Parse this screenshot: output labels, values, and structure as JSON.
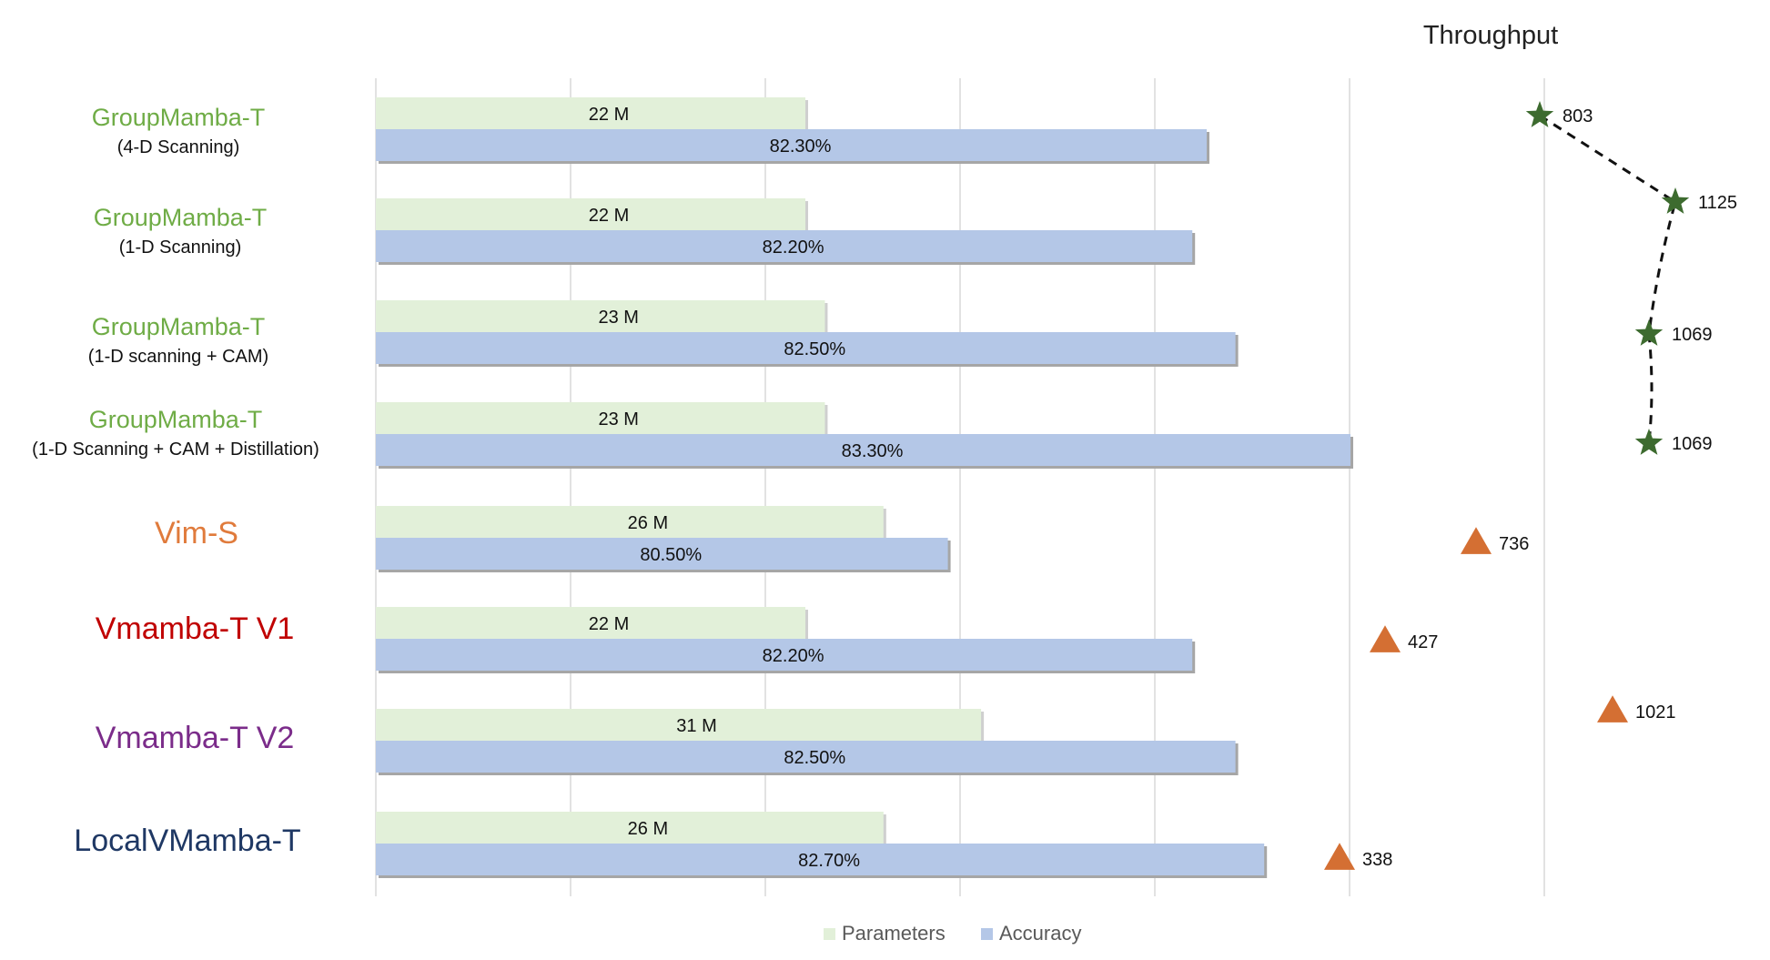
{
  "chart_data": {
    "type": "bar",
    "orientation": "horizontal",
    "categories": [
      {
        "name": "GroupMamba-T",
        "sub": "(4-D Scanning)",
        "color": "#6fac46"
      },
      {
        "name": "GroupMamba-T",
        "sub": "(1-D Scanning)",
        "color": "#6fac46"
      },
      {
        "name": "GroupMamba-T",
        "sub": "(1-D scanning + CAM)",
        "color": "#6fac46"
      },
      {
        "name": "GroupMamba-T",
        "sub": "(1-D Scanning + CAM + Distillation)",
        "color": "#6fac46"
      },
      {
        "name": "Vim-S",
        "sub": "",
        "color": "#e07b3c"
      },
      {
        "name": "Vmamba-T V1",
        "sub": "",
        "color": "#c00000"
      },
      {
        "name": "Vmamba-T V2",
        "sub": "",
        "color": "#7b2c8a"
      },
      {
        "name": "LocalVMamba-T",
        "sub": "",
        "color": "#1f3864"
      }
    ],
    "series": [
      {
        "name": "Parameters",
        "color": "#e2f0d9",
        "values": [
          22,
          22,
          23,
          23,
          26,
          22,
          31,
          26
        ],
        "labels": [
          "22 M",
          "22 M",
          "23 M",
          "23 M",
          "26 M",
          "22 M",
          "31 M",
          "26 M"
        ]
      },
      {
        "name": "Accuracy",
        "color": "#b4c7e7",
        "values": [
          82.3,
          82.2,
          82.5,
          83.3,
          80.5,
          82.2,
          82.5,
          82.7
        ],
        "labels": [
          "82.30%",
          "82.20%",
          "82.50%",
          "83.30%",
          "80.50%",
          "82.20%",
          "82.50%",
          "82.70%"
        ]
      }
    ],
    "throughput": {
      "title": "Throughput",
      "values": [
        803,
        1125,
        1069,
        1069,
        736,
        427,
        1021,
        338
      ],
      "labels": [
        "803",
        "1125",
        "1069",
        "1069",
        "736",
        "427",
        "1021",
        "338"
      ],
      "markers": [
        "star",
        "star",
        "star",
        "star",
        "triangle",
        "triangle",
        "triangle",
        "triangle"
      ],
      "star_color": "#3d6b2f",
      "triangle_color": "#d46f33",
      "connected": [
        0,
        1,
        2,
        3
      ]
    },
    "grid": true,
    "legend": "bottom"
  }
}
